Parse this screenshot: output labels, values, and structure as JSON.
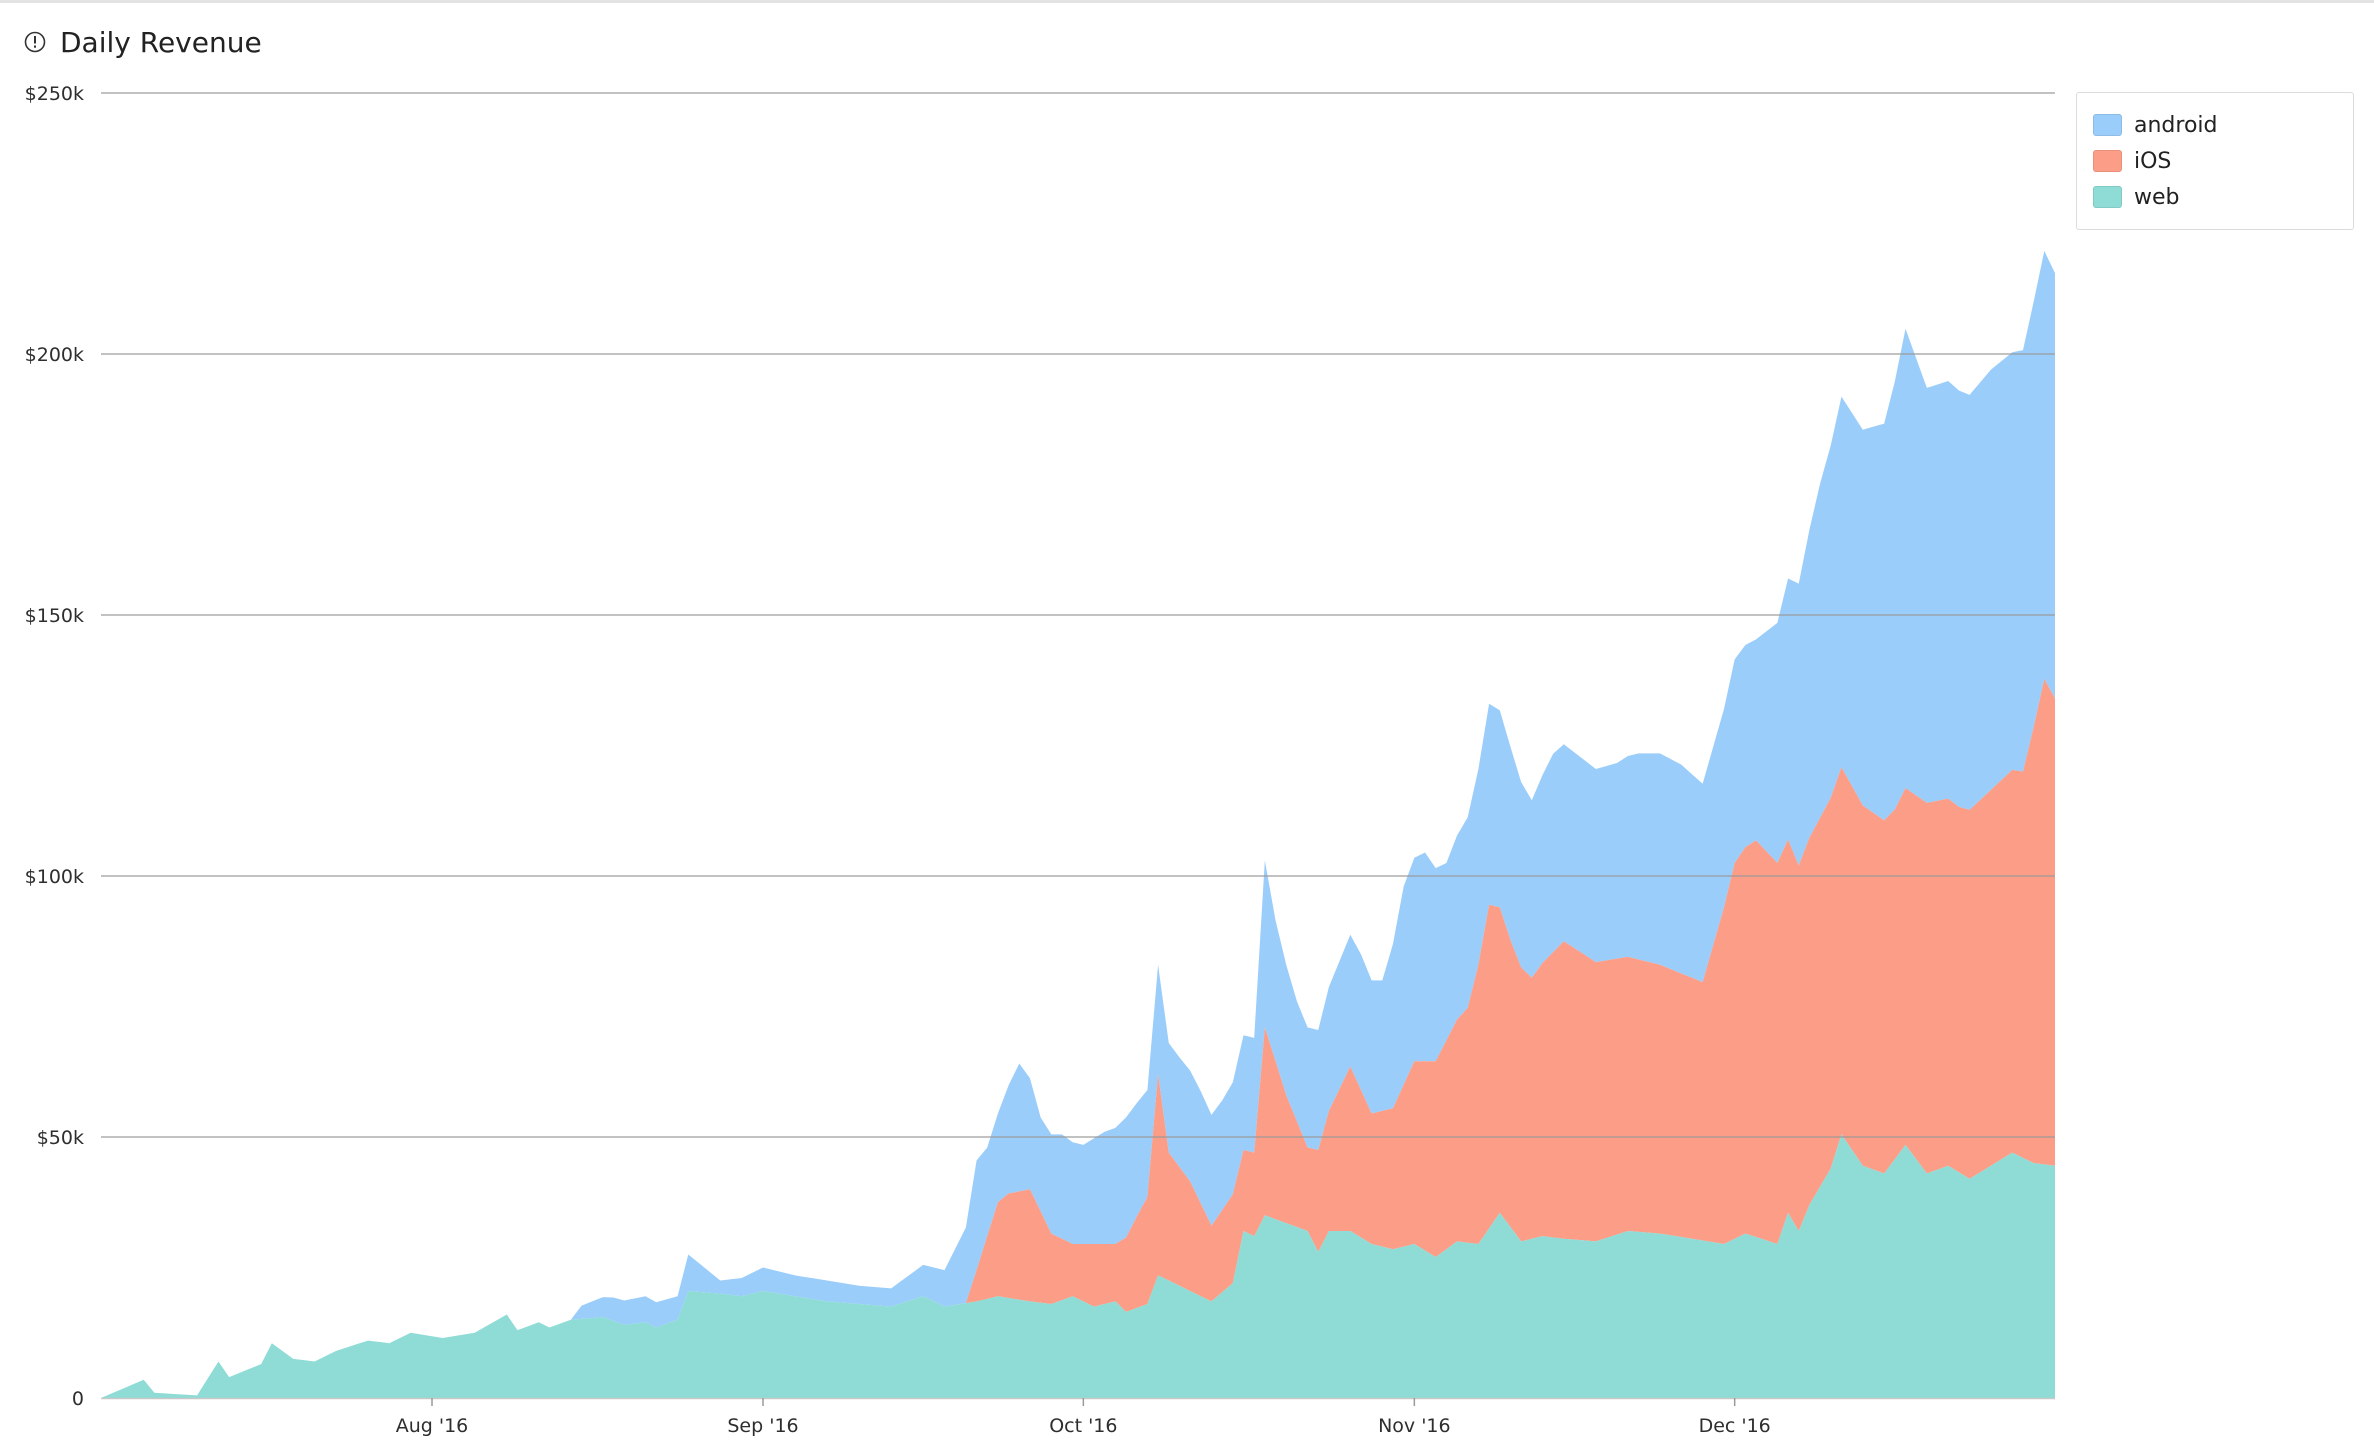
{
  "header": {
    "title": "Daily Revenue",
    "icon": "info-icon"
  },
  "chart_data": {
    "type": "area",
    "stacked": true,
    "title": "Daily Revenue",
    "xlabel": "",
    "ylabel": "",
    "x_start": "2016-07-01",
    "x_end": "2016-12-31",
    "ylim": [
      0,
      250000
    ],
    "y_ticks": [
      {
        "value": 0,
        "label": "0"
      },
      {
        "value": 50000,
        "label": "$50k"
      },
      {
        "value": 100000,
        "label": "$100k"
      },
      {
        "value": 150000,
        "label": "$150k"
      },
      {
        "value": 200000,
        "label": "$200k"
      },
      {
        "value": 250000,
        "label": "$250k"
      }
    ],
    "x_ticks": [
      {
        "date": "2016-08-01",
        "label": "Aug '16"
      },
      {
        "date": "2016-09-01",
        "label": "Sep '16"
      },
      {
        "date": "2016-10-01",
        "label": "Oct '16"
      },
      {
        "date": "2016-11-01",
        "label": "Nov '16"
      },
      {
        "date": "2016-12-01",
        "label": "Dec '16"
      }
    ],
    "grid": true,
    "legend_position": "top-right",
    "series": [
      {
        "name": "web",
        "color": "#8edcd5",
        "points": [
          [
            "2016-07-01",
            0
          ],
          [
            "2016-07-05",
            3500
          ],
          [
            "2016-07-06",
            1000
          ],
          [
            "2016-07-10",
            500
          ],
          [
            "2016-07-12",
            7000
          ],
          [
            "2016-07-13",
            4000
          ],
          [
            "2016-07-16",
            6500
          ],
          [
            "2016-07-17",
            10500
          ],
          [
            "2016-07-19",
            7500
          ],
          [
            "2016-07-21",
            7000
          ],
          [
            "2016-07-23",
            9000
          ],
          [
            "2016-07-26",
            11000
          ],
          [
            "2016-07-28",
            10500
          ],
          [
            "2016-07-30",
            12500
          ],
          [
            "2016-08-02",
            11500
          ],
          [
            "2016-08-05",
            12500
          ],
          [
            "2016-08-08",
            16000
          ],
          [
            "2016-08-09",
            13000
          ],
          [
            "2016-08-11",
            14500
          ],
          [
            "2016-08-12",
            13500
          ],
          [
            "2016-08-14",
            15000
          ],
          [
            "2016-08-17",
            15500
          ],
          [
            "2016-08-19",
            14000
          ],
          [
            "2016-08-21",
            14500
          ],
          [
            "2016-08-22",
            13500
          ],
          [
            "2016-08-24",
            15000
          ],
          [
            "2016-08-25",
            20500
          ],
          [
            "2016-08-28",
            20000
          ],
          [
            "2016-08-30",
            19500
          ],
          [
            "2016-09-01",
            20500
          ],
          [
            "2016-09-04",
            19500
          ],
          [
            "2016-09-07",
            18500
          ],
          [
            "2016-09-10",
            18000
          ],
          [
            "2016-09-13",
            17500
          ],
          [
            "2016-09-16",
            19500
          ],
          [
            "2016-09-18",
            17500
          ],
          [
            "2016-09-21",
            18500
          ],
          [
            "2016-09-23",
            19500
          ],
          [
            "2016-09-26",
            18500
          ],
          [
            "2016-09-28",
            18000
          ],
          [
            "2016-09-30",
            19500
          ],
          [
            "2016-10-02",
            17500
          ],
          [
            "2016-10-04",
            18500
          ],
          [
            "2016-10-05",
            16500
          ],
          [
            "2016-10-07",
            18000
          ],
          [
            "2016-10-08",
            23500
          ],
          [
            "2016-10-10",
            21500
          ],
          [
            "2016-10-12",
            19500
          ],
          [
            "2016-10-13",
            18500
          ],
          [
            "2016-10-15",
            22000
          ],
          [
            "2016-10-16",
            32000
          ],
          [
            "2016-10-17",
            31000
          ],
          [
            "2016-10-18",
            35000
          ],
          [
            "2016-10-20",
            33500
          ],
          [
            "2016-10-22",
            32000
          ],
          [
            "2016-10-23",
            28000
          ],
          [
            "2016-10-24",
            32000
          ],
          [
            "2016-10-26",
            32000
          ],
          [
            "2016-10-28",
            29500
          ],
          [
            "2016-10-30",
            28500
          ],
          [
            "2016-11-01",
            29500
          ],
          [
            "2016-11-03",
            27000
          ],
          [
            "2016-11-05",
            30000
          ],
          [
            "2016-11-07",
            29500
          ],
          [
            "2016-11-09",
            35500
          ],
          [
            "2016-11-11",
            30000
          ],
          [
            "2016-11-13",
            31000
          ],
          [
            "2016-11-15",
            30500
          ],
          [
            "2016-11-18",
            30000
          ],
          [
            "2016-11-21",
            32000
          ],
          [
            "2016-11-24",
            31500
          ],
          [
            "2016-11-27",
            30500
          ],
          [
            "2016-11-30",
            29500
          ],
          [
            "2016-12-02",
            31500
          ],
          [
            "2016-12-05",
            29500
          ],
          [
            "2016-12-06",
            35500
          ],
          [
            "2016-12-07",
            32000
          ],
          [
            "2016-12-08",
            37000
          ],
          [
            "2016-12-10",
            44000
          ],
          [
            "2016-12-11",
            50500
          ],
          [
            "2016-12-13",
            44500
          ],
          [
            "2016-12-15",
            43000
          ],
          [
            "2016-12-17",
            48500
          ],
          [
            "2016-12-19",
            43000
          ],
          [
            "2016-12-21",
            44500
          ],
          [
            "2016-12-23",
            42000
          ],
          [
            "2016-12-25",
            44500
          ],
          [
            "2016-12-27",
            47000
          ],
          [
            "2016-12-29",
            45000
          ],
          [
            "2016-12-31",
            44500
          ]
        ]
      },
      {
        "name": "iOS",
        "color": "#fc9d87",
        "points": [
          [
            "2016-07-01",
            0
          ],
          [
            "2016-09-20",
            0
          ],
          [
            "2016-09-23",
            18000
          ],
          [
            "2016-09-24",
            20000
          ],
          [
            "2016-09-26",
            21500
          ],
          [
            "2016-09-28",
            13500
          ],
          [
            "2016-09-30",
            10000
          ],
          [
            "2016-10-02",
            12000
          ],
          [
            "2016-10-04",
            11000
          ],
          [
            "2016-10-06",
            17500
          ],
          [
            "2016-10-07",
            20500
          ],
          [
            "2016-10-08",
            38500
          ],
          [
            "2016-10-09",
            24500
          ],
          [
            "2016-10-11",
            21000
          ],
          [
            "2016-10-13",
            14500
          ],
          [
            "2016-10-15",
            17000
          ],
          [
            "2016-10-16",
            15500
          ],
          [
            "2016-10-17",
            16000
          ],
          [
            "2016-10-18",
            36000
          ],
          [
            "2016-10-20",
            24500
          ],
          [
            "2016-10-22",
            16000
          ],
          [
            "2016-10-24",
            23000
          ],
          [
            "2016-10-26",
            31500
          ],
          [
            "2016-10-28",
            25000
          ],
          [
            "2016-10-30",
            27000
          ],
          [
            "2016-11-01",
            35000
          ],
          [
            "2016-11-03",
            37500
          ],
          [
            "2016-11-06",
            45000
          ],
          [
            "2016-11-08",
            62000
          ],
          [
            "2016-11-10",
            55000
          ],
          [
            "2016-11-12",
            50000
          ],
          [
            "2016-11-15",
            57000
          ],
          [
            "2016-11-18",
            53500
          ],
          [
            "2016-11-21",
            52500
          ],
          [
            "2016-11-24",
            51500
          ],
          [
            "2016-11-28",
            49500
          ],
          [
            "2016-12-01",
            72000
          ],
          [
            "2016-12-03",
            76000
          ],
          [
            "2016-12-05",
            73000
          ],
          [
            "2016-12-07",
            70000
          ],
          [
            "2016-12-10",
            71000
          ],
          [
            "2016-12-13",
            69000
          ],
          [
            "2016-12-16",
            67000
          ],
          [
            "2016-12-19",
            71000
          ],
          [
            "2016-12-22",
            70000
          ],
          [
            "2016-12-25",
            72000
          ],
          [
            "2016-12-28",
            74000
          ],
          [
            "2016-12-30",
            93000
          ],
          [
            "2016-12-31",
            89500
          ]
        ]
      },
      {
        "name": "android",
        "color": "#9bcdfa",
        "points": [
          [
            "2016-07-01",
            0
          ],
          [
            "2016-08-14",
            0
          ],
          [
            "2016-08-15",
            2500
          ],
          [
            "2016-08-18",
            4500
          ],
          [
            "2016-08-21",
            5000
          ],
          [
            "2016-08-24",
            4500
          ],
          [
            "2016-08-25",
            7000
          ],
          [
            "2016-08-28",
            2500
          ],
          [
            "2016-09-01",
            4500
          ],
          [
            "2016-09-04",
            4000
          ],
          [
            "2016-09-07",
            4000
          ],
          [
            "2016-09-10",
            3500
          ],
          [
            "2016-09-13",
            3500
          ],
          [
            "2016-09-16",
            6000
          ],
          [
            "2016-09-18",
            7000
          ],
          [
            "2016-09-20",
            14500
          ],
          [
            "2016-09-21",
            21000
          ],
          [
            "2016-09-22",
            17000
          ],
          [
            "2016-09-23",
            17000
          ],
          [
            "2016-09-25",
            24500
          ],
          [
            "2016-09-27",
            18000
          ],
          [
            "2016-09-29",
            20000
          ],
          [
            "2016-10-01",
            19000
          ],
          [
            "2016-10-03",
            21500
          ],
          [
            "2016-10-05",
            23000
          ],
          [
            "2016-10-07",
            20500
          ],
          [
            "2016-10-08",
            21000
          ],
          [
            "2016-10-10",
            21000
          ],
          [
            "2016-10-12",
            21500
          ],
          [
            "2016-10-14",
            21000
          ],
          [
            "2016-10-16",
            22000
          ],
          [
            "2016-10-17",
            22000
          ],
          [
            "2016-10-18",
            32000
          ],
          [
            "2016-10-19",
            27000
          ],
          [
            "2016-10-21",
            23000
          ],
          [
            "2016-10-23",
            23000
          ],
          [
            "2016-10-25",
            24500
          ],
          [
            "2016-10-27",
            26000
          ],
          [
            "2016-10-29",
            25000
          ],
          [
            "2016-10-31",
            38000
          ],
          [
            "2016-11-02",
            40000
          ],
          [
            "2016-11-04",
            34000
          ],
          [
            "2016-11-06",
            36500
          ],
          [
            "2016-11-08",
            38500
          ],
          [
            "2016-11-10",
            37000
          ],
          [
            "2016-11-12",
            34000
          ],
          [
            "2016-11-14",
            38000
          ],
          [
            "2016-11-16",
            37500
          ],
          [
            "2016-11-18",
            37000
          ],
          [
            "2016-11-20",
            37500
          ],
          [
            "2016-11-22",
            39500
          ],
          [
            "2016-11-24",
            40500
          ],
          [
            "2016-11-26",
            40000
          ],
          [
            "2016-11-28",
            38000
          ],
          [
            "2016-11-30",
            38000
          ],
          [
            "2016-12-01",
            39000
          ],
          [
            "2016-12-03",
            38500
          ],
          [
            "2016-12-05",
            46000
          ],
          [
            "2016-12-07",
            54000
          ],
          [
            "2016-12-09",
            64000
          ],
          [
            "2016-12-11",
            71000
          ],
          [
            "2016-12-13",
            72000
          ],
          [
            "2016-12-15",
            76000
          ],
          [
            "2016-12-17",
            88000
          ],
          [
            "2016-12-19",
            79500
          ],
          [
            "2016-12-21",
            80000
          ],
          [
            "2016-12-23",
            79500
          ],
          [
            "2016-12-25",
            80500
          ],
          [
            "2016-12-27",
            80000
          ],
          [
            "2016-12-29",
            81500
          ],
          [
            "2016-12-30",
            82000
          ],
          [
            "2016-12-31",
            81500
          ]
        ]
      }
    ]
  },
  "legend": {
    "items": [
      {
        "label": "android",
        "color": "#9bcdfa"
      },
      {
        "label": "iOS",
        "color": "#fc9d87"
      },
      {
        "label": "web",
        "color": "#8edcd5"
      }
    ]
  }
}
